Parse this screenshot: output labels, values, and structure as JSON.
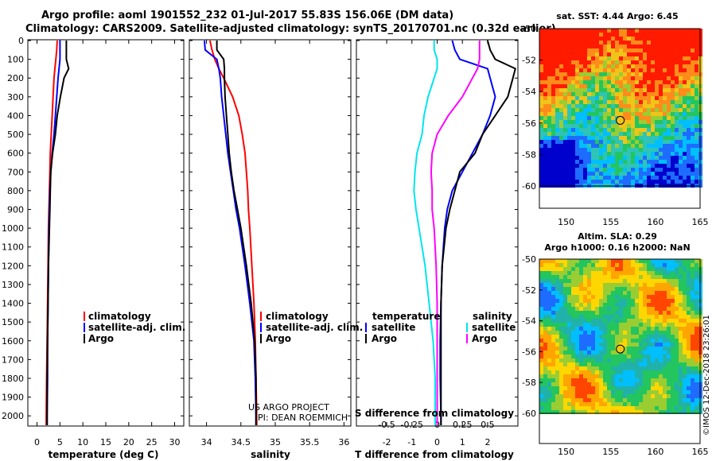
{
  "header": {
    "line1": "Argo profile: aoml 1901552_232 01-Jul-2017 55.83S 156.06E (DM data)",
    "line2": "Climatology: CARS2009. Satellite-adjusted climatology: synTS_20170701.nc (0.32d earlier)"
  },
  "colors": {
    "climatology": "#ff0000",
    "satellite": "#0000ff",
    "argo": "#000000",
    "sat_temp": "#0000ff",
    "sat_sal": "#00e5ee",
    "argo_sal": "#ff00ff"
  },
  "chart_data": [
    {
      "type": "line",
      "name": "temperature",
      "title": "",
      "xlabel": "temperature (deg C)",
      "ylabel": "depth",
      "xlim": [
        -2,
        32
      ],
      "ylim": [
        2050,
        0
      ],
      "xticks": [
        0,
        5,
        10,
        15,
        20,
        25,
        30
      ],
      "yticks": [
        0,
        100,
        200,
        300,
        400,
        500,
        600,
        700,
        800,
        900,
        1000,
        1100,
        1200,
        1300,
        1400,
        1500,
        1600,
        1700,
        1800,
        1900,
        2000
      ],
      "depths": [
        0,
        50,
        100,
        150,
        200,
        300,
        400,
        500,
        600,
        700,
        800,
        900,
        1000,
        1200,
        1400,
        1600,
        1800,
        2000,
        2050
      ],
      "series": [
        {
          "name": "climatology",
          "values": [
            4.4,
            4.3,
            4.1,
            3.9,
            3.7,
            3.5,
            3.3,
            3.1,
            2.9,
            2.8,
            2.7,
            2.6,
            2.5,
            2.4,
            2.3,
            2.2,
            2.1,
            2.0,
            2.0
          ]
        },
        {
          "name": "satellite-adj. clim.",
          "values": [
            5.0,
            5.0,
            5.0,
            4.8,
            4.6,
            4.3,
            4.0,
            3.7,
            3.3,
            3.0,
            2.8,
            2.7,
            2.6,
            2.5,
            2.4,
            2.3,
            2.3,
            2.2,
            2.2
          ]
        },
        {
          "name": "Argo",
          "values": [
            6.4,
            6.4,
            6.4,
            6.9,
            5.9,
            5.1,
            4.4,
            4.0,
            3.4,
            3.0,
            2.9,
            2.8,
            2.7,
            2.5,
            2.4,
            2.3,
            2.2,
            2.2,
            2.2
          ]
        }
      ],
      "legend": [
        "climatology",
        "satellite-adj. clim.",
        "Argo"
      ],
      "legend_placement": "lower-right"
    },
    {
      "type": "line",
      "name": "salinity",
      "title": "",
      "xlabel": "salinity",
      "ylabel": "",
      "xlim": [
        33.75,
        36.1
      ],
      "ylim": [
        2050,
        0
      ],
      "xticks": [
        34,
        34.5,
        35,
        35.5,
        36
      ],
      "depths": [
        0,
        50,
        100,
        150,
        200,
        300,
        400,
        500,
        600,
        700,
        800,
        900,
        1000,
        1200,
        1400,
        1600,
        1800,
        2000,
        2050
      ],
      "series": [
        {
          "name": "climatology",
          "values": [
            34.05,
            34.08,
            34.12,
            34.18,
            34.25,
            34.38,
            34.47,
            34.52,
            34.56,
            34.58,
            34.6,
            34.61,
            34.63,
            34.66,
            34.69,
            34.71,
            34.72,
            34.73,
            34.73
          ]
        },
        {
          "name": "satellite-adj. clim.",
          "values": [
            33.97,
            33.98,
            34.15,
            34.18,
            34.2,
            34.22,
            34.25,
            34.28,
            34.31,
            34.35,
            34.39,
            34.43,
            34.48,
            34.56,
            34.63,
            34.69,
            34.71,
            34.72,
            34.72
          ]
        },
        {
          "name": "Argo",
          "values": [
            34.15,
            34.15,
            34.25,
            34.26,
            34.26,
            34.27,
            34.29,
            34.31,
            34.33,
            34.36,
            34.4,
            34.45,
            34.5,
            34.58,
            34.65,
            34.7,
            34.72,
            34.72,
            34.72
          ]
        }
      ],
      "legend": [
        "climatology",
        "satellite-adj. clim.",
        "Argo"
      ],
      "legend_placement": "lower-right",
      "credit_line1": "US ARGO PROJECT",
      "credit_line2": "PI: DEAN ROEMMICH"
    },
    {
      "type": "line",
      "name": "difference",
      "title": "",
      "xlabel": "T difference from climatology",
      "ylabel": "",
      "xlim": [
        -3.2,
        3.2
      ],
      "ylim": [
        2050,
        0
      ],
      "xticks": [
        -2,
        -1,
        0,
        1,
        2
      ],
      "secondary_xlabel": "S difference from climatology",
      "secondary_xticks": [
        "-0.5",
        "-0.25",
        "0",
        "0.25",
        "0.5"
      ],
      "depths": [
        0,
        50,
        100,
        150,
        200,
        300,
        400,
        500,
        600,
        700,
        800,
        900,
        1000,
        1200,
        1400,
        1600,
        1800,
        2000,
        2050
      ],
      "series": [
        {
          "name": "temperature satellite",
          "values": [
            0.6,
            0.7,
            0.9,
            2.0,
            2.1,
            2.3,
            2.1,
            1.8,
            1.4,
            1.0,
            0.6,
            0.4,
            0.3,
            0.2,
            0.15,
            0.12,
            0.12,
            0.15,
            0.15
          ]
        },
        {
          "name": "temperature Argo",
          "values": [
            2.0,
            2.1,
            2.3,
            3.1,
            3.0,
            2.8,
            2.3,
            1.8,
            1.5,
            0.9,
            0.7,
            0.5,
            0.35,
            0.2,
            0.15,
            0.15,
            0.15,
            0.15,
            0.15
          ]
        },
        {
          "name": "salinity satellite",
          "values": [
            -0.03,
            -0.03,
            0.0,
            0.0,
            -0.03,
            -0.09,
            -0.13,
            -0.15,
            -0.2,
            -0.22,
            -0.23,
            -0.21,
            -0.18,
            -0.12,
            -0.08,
            -0.04,
            -0.02,
            -0.02,
            -0.02
          ]
        },
        {
          "name": "salinity Argo",
          "values": [
            0.42,
            0.42,
            0.42,
            0.4,
            0.35,
            0.25,
            0.11,
            0.0,
            -0.05,
            -0.06,
            -0.05,
            -0.05,
            -0.03,
            -0.01,
            0.0,
            0.0,
            0.0,
            0.0,
            0.0
          ]
        }
      ],
      "legend_temperature_title": "temperature",
      "legend_salinity_title": "salinity",
      "legend_satellite": "satellite",
      "legend_argo": "Argo"
    }
  ],
  "maps": {
    "x_ticks": [
      "150",
      "155",
      "160",
      "165"
    ],
    "y_ticks": [
      "-50",
      "-52",
      "-54",
      "-56",
      "-58",
      "-60"
    ],
    "sst": {
      "title": "sat. SST: 4.44 Argo: 6.45",
      "marker_lon": 156.06,
      "marker_lat": -55.83
    },
    "sla": {
      "title1": "Altim. SLA: 0.29",
      "title2": "Argo h1000: 0.16 h2000: NaN",
      "marker_lon": 156.06,
      "marker_lat": -55.83
    }
  },
  "stamp": "©IMOS 12-Dec-2018 23:26:01"
}
